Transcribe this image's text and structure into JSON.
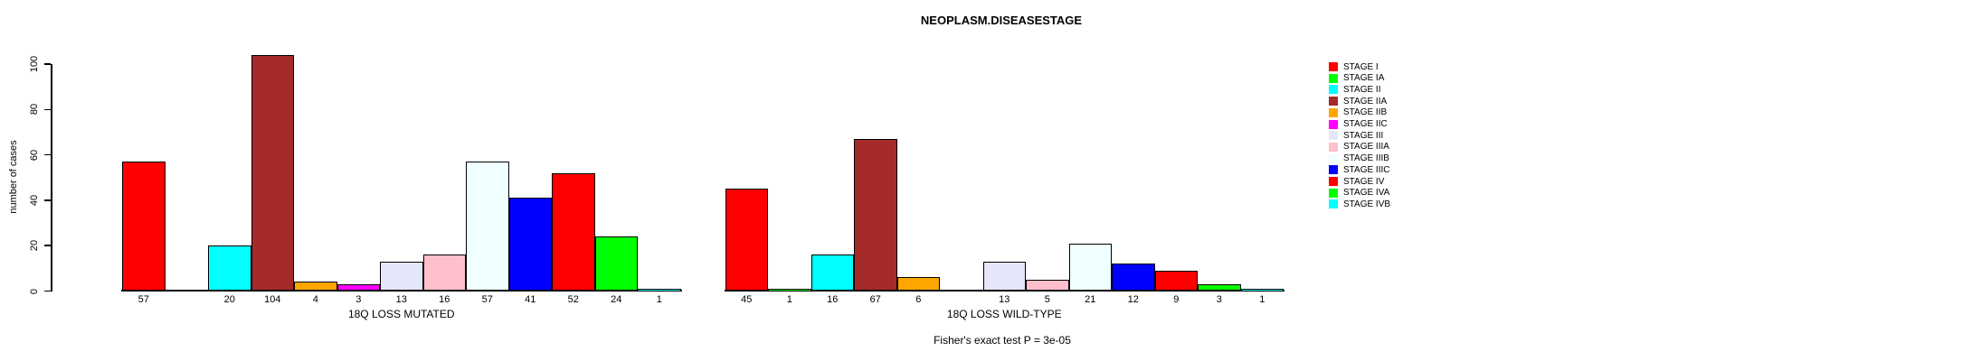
{
  "title": "NEOPLASM.DISEASESTAGE",
  "chart_data": {
    "type": "bar",
    "title": "NEOPLASM.DISEASESTAGE",
    "xlabel": "",
    "ylabel": "number of cases",
    "ylim": [
      0,
      100
    ],
    "yticks": [
      0,
      20,
      40,
      60,
      80,
      100
    ],
    "grid": false,
    "legend_position": "right",
    "categories": [
      "STAGE I",
      "STAGE IA",
      "STAGE II",
      "STAGE IIA",
      "STAGE IIB",
      "STAGE IIC",
      "STAGE III",
      "STAGE IIIA",
      "STAGE IIIB",
      "STAGE IIIC",
      "STAGE IV",
      "STAGE IVA",
      "STAGE IVB"
    ],
    "colors": [
      "#FF0000",
      "#00FF00",
      "#00FFFF",
      "#A52A2A",
      "#FFA500",
      "#FF00FF",
      "#E6E6FA",
      "#FFC0CB",
      "#F0FFFF",
      "#0000FF",
      "#FF0000",
      "#00FF00",
      "#00FFFF"
    ],
    "groups": [
      {
        "label": "18Q LOSS MUTATED",
        "values": [
          57,
          0,
          20,
          104,
          4,
          3,
          13,
          16,
          57,
          41,
          52,
          24,
          1
        ]
      },
      {
        "label": "18Q LOSS WILD-TYPE",
        "values": [
          45,
          1,
          16,
          67,
          6,
          0,
          13,
          5,
          21,
          12,
          9,
          3,
          1
        ]
      }
    ],
    "annotation": "Fisher's exact test P = 3e-05"
  }
}
